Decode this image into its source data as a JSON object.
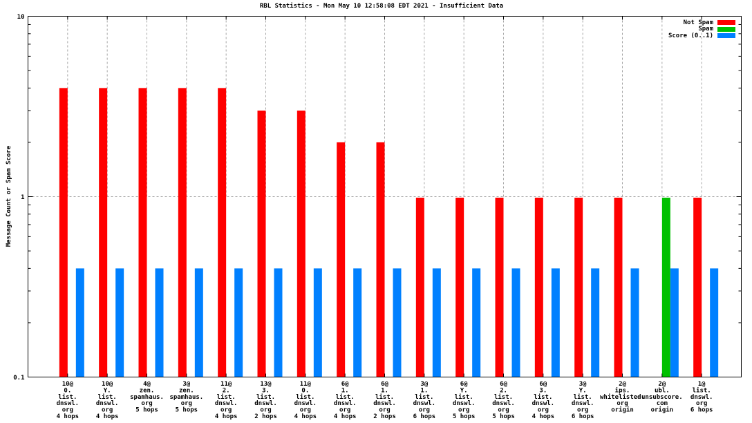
{
  "chart_data": {
    "type": "bar",
    "title": "RBL Statistics - Mon May 10 12:58:08 EDT 2021 - Insufficient Data",
    "ylabel": "Message Count or Spam Score",
    "yscale": "log",
    "ylim": [
      0.1,
      10
    ],
    "yticks": [
      {
        "label": "10",
        "value": 10
      },
      {
        "label": "1",
        "value": 1
      },
      {
        "label": "0.1",
        "value": 0.1
      }
    ],
    "grid": {
      "horizontal_dashed_at": 1,
      "vertical_dashed": "at each category down to y=1"
    },
    "legend_position": "top-right-inside",
    "legend": [
      {
        "name": "Not Spam",
        "color": "#ff0000"
      },
      {
        "name": "Spam",
        "color": "#00c000"
      },
      {
        "name": "Score (0..1)",
        "color": "#0080ff"
      }
    ],
    "categories": [
      [
        "10@",
        "0.",
        "list.",
        "dnswl.",
        "org",
        "4 hops"
      ],
      [
        "10@",
        "Y.",
        "list.",
        "dnswl.",
        "org",
        "4 hops"
      ],
      [
        "4@",
        "zen.",
        "spamhaus.",
        "org",
        "5 hops"
      ],
      [
        "3@",
        "zen.",
        "spamhaus.",
        "org",
        "5 hops"
      ],
      [
        "11@",
        "2.",
        "list.",
        "dnswl.",
        "org",
        "4 hops"
      ],
      [
        "13@",
        "3.",
        "list.",
        "dnswl.",
        "org",
        "2 hops"
      ],
      [
        "11@",
        "0.",
        "list.",
        "dnswl.",
        "org",
        "4 hops"
      ],
      [
        "6@",
        "1.",
        "list.",
        "dnswl.",
        "org",
        "4 hops"
      ],
      [
        "6@",
        "1.",
        "list.",
        "dnswl.",
        "org",
        "2 hops"
      ],
      [
        "3@",
        "1.",
        "list.",
        "dnswl.",
        "org",
        "6 hops"
      ],
      [
        "6@",
        "Y.",
        "list.",
        "dnswl.",
        "org",
        "5 hops"
      ],
      [
        "6@",
        "2.",
        "list.",
        "dnswl.",
        "org",
        "5 hops"
      ],
      [
        "6@",
        "3.",
        "list.",
        "dnswl.",
        "org",
        "4 hops"
      ],
      [
        "3@",
        "Y.",
        "list.",
        "dnswl.",
        "org",
        "6 hops"
      ],
      [
        "2@",
        "ips.",
        "whitelisted.",
        "org",
        "origin"
      ],
      [
        "2@",
        "ubl.",
        "unsubscore.",
        "com",
        "origin"
      ],
      [
        "1@",
        "list.",
        "dnswl.",
        "org",
        "6 hops"
      ]
    ],
    "series": [
      {
        "name": "Not Spam",
        "color": "#ff0000",
        "values": [
          4,
          4,
          4,
          4,
          4,
          3,
          3,
          2,
          2,
          1,
          1,
          1,
          1,
          1,
          1,
          0,
          1
        ]
      },
      {
        "name": "Spam",
        "color": "#00c000",
        "values": [
          0,
          0,
          0,
          0,
          0,
          0,
          0,
          0,
          0,
          0,
          0,
          0,
          0,
          0,
          0,
          1,
          0
        ]
      },
      {
        "name": "Score (0..1)",
        "color": "#0080ff",
        "values": [
          0.4,
          0.4,
          0.4,
          0.4,
          0.4,
          0.4,
          0.4,
          0.4,
          0.4,
          0.4,
          0.4,
          0.4,
          0.4,
          0.4,
          0.4,
          0.4,
          0.4
        ]
      }
    ]
  }
}
